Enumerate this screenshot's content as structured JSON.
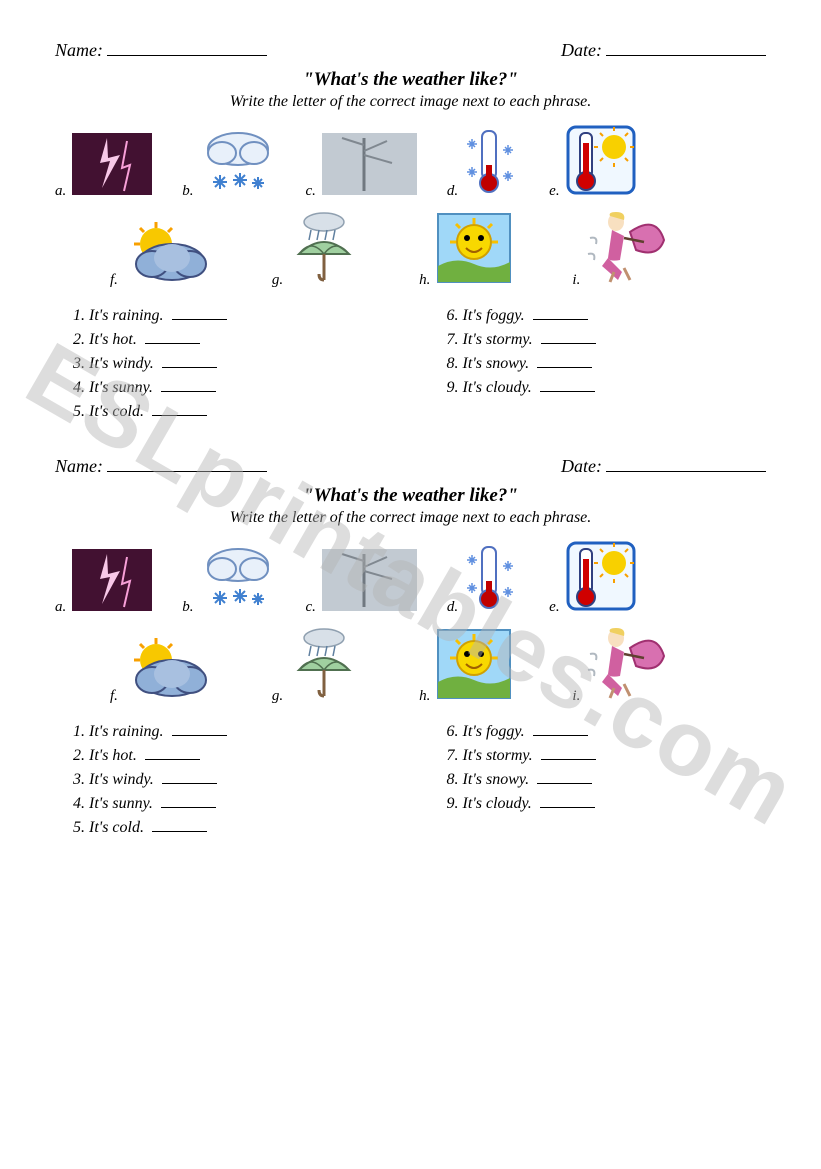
{
  "watermark": "ESLprintables.com",
  "worksheet": {
    "name_label": "Name:",
    "date_label": "Date:",
    "title": "\"What's the weather like?\"",
    "instruction": "Write the letter of the correct image next to each phrase.",
    "images_row1": [
      {
        "letter": "a.",
        "icon": "lightning"
      },
      {
        "letter": "b.",
        "icon": "snow"
      },
      {
        "letter": "c.",
        "icon": "fog"
      },
      {
        "letter": "d.",
        "icon": "cold-thermo"
      },
      {
        "letter": "e.",
        "icon": "hot-thermo"
      }
    ],
    "images_row2": [
      {
        "letter": "f.",
        "icon": "cloudy"
      },
      {
        "letter": "g.",
        "icon": "rain"
      },
      {
        "letter": "h.",
        "icon": "sunny"
      },
      {
        "letter": "i.",
        "icon": "windy"
      }
    ],
    "questions_left": [
      {
        "n": "1.",
        "text": "It's raining."
      },
      {
        "n": "2.",
        "text": "It's hot."
      },
      {
        "n": "3.",
        "text": "It's windy."
      },
      {
        "n": "4.",
        "text": "It's sunny."
      },
      {
        "n": "5.",
        "text": "It's cold."
      }
    ],
    "questions_right": [
      {
        "n": "6.",
        "text": "It's foggy."
      },
      {
        "n": "7.",
        "text": "It's stormy."
      },
      {
        "n": "8.",
        "text": "It's snowy."
      },
      {
        "n": "9.",
        "text": "It's cloudy."
      }
    ]
  },
  "colors": {
    "lightning_bg": "#2a0a2a",
    "lightning_bolt": "#f8a0d8",
    "snow_cloud": "#d8e8f8",
    "snow_flake": "#4080d0",
    "fog_bg": "#b8c0c8",
    "cold_border": "#3050b0",
    "cold_bulb": "#c00000",
    "cold_snow": "#6090e0",
    "hot_border": "#2060c0",
    "hot_bulb": "#d00000",
    "hot_sun": "#f8c800",
    "cloudy_cloud": "#90b0d8",
    "cloudy_sun": "#f8c000",
    "rain_umbrella": "#a0d0a0",
    "rain_cloud": "#d0d8e0",
    "sunny_sun": "#f8d000",
    "sunny_grass": "#60a030",
    "sunny_sky": "#80c0f0",
    "windy_dress": "#d060a0",
    "windy_umbrella": "#c04080"
  }
}
